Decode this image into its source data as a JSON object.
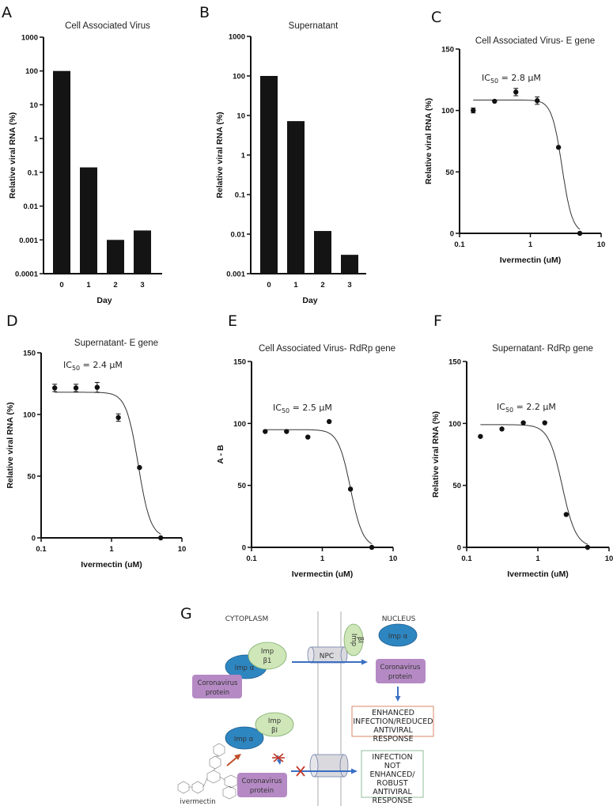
{
  "chart_data": [
    {
      "panel": "A",
      "type": "bar",
      "title": "Cell Associated Virus",
      "xlabel": "Day",
      "ylabel": "Relative viral RNA (%)",
      "yscale": "log",
      "ylim": [
        0.0001,
        1000
      ],
      "yticks": [
        "0.0001",
        "0.001",
        "0.01",
        "0.1",
        "1",
        "10",
        "100",
        "1000"
      ],
      "categories": [
        "0",
        "1",
        "2",
        "3"
      ],
      "values": [
        100,
        0.14,
        0.001,
        0.0019
      ]
    },
    {
      "panel": "B",
      "type": "bar",
      "title": "Supernatant",
      "xlabel": "Day",
      "ylabel": "Relative viral RNA (%)",
      "yscale": "log",
      "ylim": [
        0.001,
        1000
      ],
      "yticks": [
        "0.001",
        "0.01",
        "0.1",
        "1",
        "10",
        "100",
        "1000"
      ],
      "categories": [
        "0",
        "1",
        "2",
        "3"
      ],
      "values": [
        100,
        7.2,
        0.012,
        0.003
      ]
    },
    {
      "panel": "C",
      "type": "scatter",
      "title": "Cell Associated Virus- E gene",
      "annotation": {
        "prefix": "IC",
        "sub": "50",
        "suffix": " = 2.8 µM"
      },
      "xlabel": "Ivermectin (uM)",
      "ylabel": "Relative viral RNA (%)",
      "xscale": "log",
      "xlim": [
        0.1,
        10
      ],
      "xticks": [
        "0.1",
        "1",
        "10"
      ],
      "ylim": [
        0,
        150
      ],
      "yticks": [
        "0",
        "50",
        "100",
        "150"
      ],
      "x": [
        0.156,
        0.3125,
        0.625,
        1.25,
        2.5,
        5
      ],
      "y": [
        100,
        107.5,
        115,
        108,
        70,
        0
      ],
      "err": [
        2,
        0,
        3,
        3,
        0,
        0
      ],
      "fit": {
        "top": 108.5,
        "bottom": 0,
        "ic50": 2.8,
        "hill": 6
      }
    },
    {
      "panel": "D",
      "type": "scatter",
      "title": "Supernatant- E gene",
      "annotation": {
        "prefix": "IC",
        "sub": "50",
        "suffix": " = 2.4 µM"
      },
      "xlabel": "Ivermectin (uM)",
      "ylabel": "Relative viral RNA (%)",
      "xscale": "log",
      "xlim": [
        0.1,
        10
      ],
      "xticks": [
        "0.1",
        "1",
        "10"
      ],
      "ylim": [
        0,
        150
      ],
      "yticks": [
        "0",
        "50",
        "100",
        "150"
      ],
      "x": [
        0.156,
        0.3125,
        0.625,
        1.25,
        2.5,
        5
      ],
      "y": [
        121.5,
        121.5,
        122,
        97.5,
        57,
        0
      ],
      "err": [
        3,
        3,
        4,
        3,
        0,
        0
      ],
      "fit": {
        "top": 118,
        "bottom": 0,
        "ic50": 2.4,
        "hill": 5
      }
    },
    {
      "panel": "E",
      "type": "scatter",
      "title": "Cell Associated Virus- RdRp gene",
      "annotation": {
        "prefix": "IC",
        "sub": "50",
        "suffix": " = 2.5 µM"
      },
      "xlabel": "Ivermectin (uM)",
      "ylabel": "A - B",
      "xscale": "log",
      "xlim": [
        0.1,
        10
      ],
      "xticks": [
        "0.1",
        "1",
        "10"
      ],
      "ylim": [
        0,
        150
      ],
      "yticks": [
        "0",
        "50",
        "100",
        "150"
      ],
      "x": [
        0.156,
        0.3125,
        0.625,
        1.25,
        2.5,
        5
      ],
      "y": [
        93.5,
        93.5,
        89,
        101.5,
        47,
        0
      ],
      "err": [
        0,
        0,
        0,
        0,
        0,
        0
      ],
      "fit": {
        "top": 95,
        "bottom": 0,
        "ic50": 2.5,
        "hill": 5
      }
    },
    {
      "panel": "F",
      "type": "scatter",
      "title": "Supernatant- RdRp gene",
      "annotation": {
        "prefix": "IC",
        "sub": "50",
        "suffix": " = 2.2 µM"
      },
      "xlabel": "Ivermectin (uM)",
      "ylabel": "Relative viral RNA (%)",
      "xscale": "log",
      "xlim": [
        0.1,
        10
      ],
      "xticks": [
        "0.1",
        "1",
        "10"
      ],
      "ylim": [
        0,
        150
      ],
      "yticks": [
        "0",
        "50",
        "100",
        "150"
      ],
      "x": [
        0.156,
        0.3125,
        0.625,
        1.25,
        2.5,
        5
      ],
      "y": [
        89.5,
        95.5,
        100.5,
        100.5,
        26.5,
        0
      ],
      "err": [
        0,
        0,
        0,
        0,
        0,
        0
      ],
      "fit": {
        "top": 99,
        "bottom": 0,
        "ic50": 2.2,
        "hill": 4.5
      }
    }
  ],
  "diagram": {
    "panel": "G",
    "cytoplasm_label": "CYTOPLASM",
    "nucleus_label": "NUCLEUS",
    "npc_label": "NPC",
    "imp_alpha": "Imp α",
    "imp_beta_top": "Imp",
    "imp_beta_bottom": "β1",
    "imp_beta_bottom_alt": "βI",
    "protein_line1": "Coronavirus",
    "protein_line2": "protein",
    "drug_label": "ivermectin",
    "outcome_enhanced": [
      "ENHANCED",
      "INFECTION/REDUCED",
      "ANTIVIRAL",
      "RESPONSE"
    ],
    "outcome_blocked": [
      "INFECTION",
      "NOT",
      "ENHANCED/",
      "ROBUST",
      "ANTIVIRAL",
      "RESPONSE"
    ],
    "colors": {
      "imp_alpha": "#2e86c1",
      "imp_beta": "#cfe6b8",
      "protein": "#b58ac4",
      "arrow": "#3a6fc4",
      "cross": "#c0392b",
      "drug_arrow": "#c0502b",
      "enhanced_border": "#d9876a",
      "blocked_border": "#8fbf9a"
    }
  }
}
